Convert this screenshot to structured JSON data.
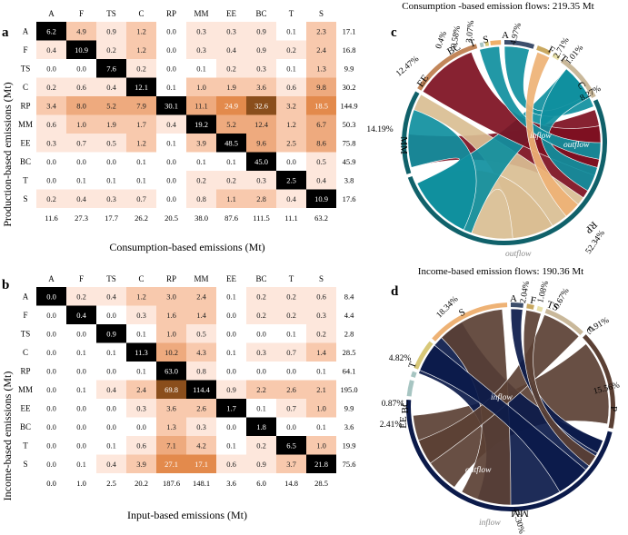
{
  "colors": {
    "heat_scale": [
      "#ffffff",
      "#fde7dc",
      "#f8c9ad",
      "#eeaa7e",
      "#e38a4c",
      "#d06a1c",
      "#8a4e1c"
    ],
    "diag": "#000000",
    "chord": {
      "A": "#3d4e6b",
      "F": "#c9a860",
      "TS": "#e8e0a8",
      "C": "#c9b89a",
      "RP": "#7a0f1e",
      "MM": "#10616a",
      "EE": "#c2865a",
      "BC": "#a7c5c2",
      "T": "#d8c878",
      "S": "#f0b06a",
      "teal": "#0f8f9e",
      "tan": "#d9be93",
      "maroon": "#7d0f1f",
      "brown": "#5b4034",
      "navy": "#0b1a4a",
      "sandy": "#eeb275"
    }
  },
  "panels": {
    "a": {
      "letter": "a",
      "ylabel": "Production-based emissions (Mt)",
      "xlabel": "Consumption-based emissions (Mt)"
    },
    "b": {
      "letter": "b",
      "ylabel": "Income-based emissions (Mt)",
      "xlabel": "Input-based emissions (Mt)"
    },
    "c": {
      "letter": "c",
      "title": "Consumption -based emission flows:  219.35 Mt",
      "arrow_in": "inflow",
      "arrow_out": "outflow",
      "outside": "outflow"
    },
    "d": {
      "letter": "d",
      "title": "Income-based emission flows: 190.36 Mt",
      "arrow_in": "inflow",
      "arrow_out": "outflow",
      "outside": "inflow"
    }
  },
  "chart_data": [
    {
      "type": "heatmap",
      "panel": "a",
      "xlabel": "Consumption-based emissions (Mt)",
      "ylabel": "Production-based emissions (Mt)",
      "categories": [
        "A",
        "F",
        "TS",
        "C",
        "RP",
        "MM",
        "EE",
        "BC",
        "T",
        "S"
      ],
      "values": [
        [
          6.2,
          4.9,
          0.9,
          1.2,
          0.0,
          0.3,
          0.3,
          0.9,
          0.1,
          2.3
        ],
        [
          0.4,
          10.9,
          0.2,
          1.2,
          0.0,
          0.3,
          0.4,
          0.9,
          0.2,
          2.4
        ],
        [
          0.0,
          0.0,
          7.6,
          0.2,
          0.0,
          0.1,
          0.2,
          0.3,
          0.1,
          1.3
        ],
        [
          0.2,
          0.6,
          0.4,
          12.1,
          0.1,
          1.0,
          1.9,
          3.6,
          0.6,
          9.8
        ],
        [
          3.4,
          8.0,
          5.2,
          7.9,
          30.1,
          11.1,
          24.9,
          32.6,
          3.2,
          18.5
        ],
        [
          0.6,
          1.0,
          1.9,
          1.7,
          0.4,
          19.2,
          5.2,
          12.4,
          1.2,
          6.7
        ],
        [
          0.3,
          0.7,
          0.5,
          1.2,
          0.1,
          3.9,
          48.5,
          9.6,
          2.5,
          8.6
        ],
        [
          0.0,
          0.0,
          0.0,
          0.1,
          0.0,
          0.1,
          0.1,
          45.0,
          0.0,
          0.5
        ],
        [
          0.0,
          0.1,
          0.1,
          0.1,
          0.0,
          0.2,
          0.2,
          0.3,
          2.5,
          0.4
        ],
        [
          0.2,
          0.4,
          0.3,
          0.7,
          0.0,
          0.8,
          1.1,
          2.8,
          0.4,
          10.9
        ]
      ],
      "row_totals": [
        "17.1",
        "16.8",
        "9.9",
        "30.2",
        "144.9",
        "50.3",
        "75.8",
        "45.9",
        "3.8",
        "17.6"
      ],
      "col_totals": [
        "11.6",
        "27.3",
        "17.7",
        "26.2",
        "20.5",
        "38.0",
        "87.6",
        "111.5",
        "11.1",
        "63.2"
      ]
    },
    {
      "type": "heatmap",
      "panel": "b",
      "xlabel": "Input-based emissions (Mt)",
      "ylabel": "Income-based emissions (Mt)",
      "categories": [
        "A",
        "F",
        "TS",
        "C",
        "RP",
        "MM",
        "EE",
        "BC",
        "T",
        "S"
      ],
      "values": [
        [
          0.0,
          0.2,
          0.4,
          1.2,
          3.0,
          2.4,
          0.1,
          0.2,
          0.2,
          0.6
        ],
        [
          0.0,
          0.4,
          0.0,
          0.3,
          1.6,
          1.4,
          0.0,
          0.2,
          0.2,
          0.3
        ],
        [
          0.0,
          0.0,
          0.9,
          0.1,
          1.0,
          0.5,
          0.0,
          0.0,
          0.1,
          0.2
        ],
        [
          0.0,
          0.1,
          0.1,
          11.3,
          10.2,
          4.3,
          0.1,
          0.3,
          0.7,
          1.4
        ],
        [
          0.0,
          0.0,
          0.0,
          0.1,
          63.0,
          0.8,
          0.0,
          0.0,
          0.0,
          0.1
        ],
        [
          0.0,
          0.1,
          0.4,
          2.4,
          69.8,
          114.4,
          0.9,
          2.2,
          2.6,
          2.1
        ],
        [
          0.0,
          0.0,
          0.0,
          0.3,
          3.6,
          2.6,
          1.7,
          0.1,
          0.7,
          1.0
        ],
        [
          0.0,
          0.0,
          0.0,
          0.0,
          1.3,
          0.3,
          0.0,
          1.8,
          0.0,
          0.1
        ],
        [
          0.0,
          0.0,
          0.1,
          0.6,
          7.1,
          4.2,
          0.1,
          0.2,
          6.5,
          1.0
        ],
        [
          0.0,
          0.1,
          0.4,
          3.9,
          27.1,
          17.1,
          0.6,
          0.9,
          3.7,
          21.8
        ]
      ],
      "row_totals": [
        "8.4",
        "4.4",
        "2.8",
        "28.5",
        "64.1",
        "195.0",
        "9.9",
        "3.6",
        "19.9",
        "75.6"
      ],
      "col_totals": [
        "0.0",
        "1.0",
        "2.5",
        "20.2",
        "187.6",
        "148.1",
        "3.6",
        "6.0",
        "14.8",
        "28.5"
      ]
    },
    {
      "type": "chord",
      "panel": "c",
      "title": "Consumption -based emission flows:  219.35 Mt",
      "labels": [
        {
          "name": "A",
          "pct": "4.97%"
        },
        {
          "name": "F",
          "pct": "2.71%"
        },
        {
          "name": "T",
          "pct": "1.01%"
        },
        {
          "name": "C",
          "pct": "8.27%"
        },
        {
          "name": "RP",
          "pct": "52.34%"
        },
        {
          "name": "MM",
          "pct": "14.19%"
        },
        {
          "name": "EE",
          "pct": "12.47%"
        },
        {
          "name": "BC",
          "pct": "0.4%"
        },
        {
          "name": "T",
          "pct": "0.58%"
        },
        {
          "name": "S",
          "pct": "3.07%"
        }
      ]
    },
    {
      "type": "chord",
      "panel": "d",
      "title": "Income-based emission flows: 190.36 Mt",
      "labels": [
        {
          "name": "A",
          "pct": "2.04%"
        },
        {
          "name": "F",
          "pct": "1.08%"
        },
        {
          "name": "TS",
          "pct": "0.67%"
        },
        {
          "name": "C",
          "pct": "6.91%"
        },
        {
          "name": "P",
          "pct": "15.56%"
        },
        {
          "name": "MM",
          "pct": "47.30%"
        },
        {
          "name": "EE",
          "pct": "2.41%"
        },
        {
          "name": "BC",
          "pct": "0.87%"
        },
        {
          "name": "T",
          "pct": "4.82%"
        },
        {
          "name": "S",
          "pct": "18.34%"
        }
      ]
    }
  ]
}
